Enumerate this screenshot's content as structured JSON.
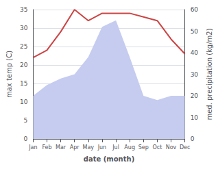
{
  "chart_data": {
    "type": "line",
    "categories": [
      "Jan",
      "Feb",
      "Mar",
      "Apr",
      "May",
      "Jun",
      "Jul",
      "Aug",
      "Sep",
      "Oct",
      "Nov",
      "Dec"
    ],
    "xlabel": "date (month)",
    "ylabel": "max temp (C)",
    "y2label": "med. precipitation (kg/m2)",
    "ylim": [
      0,
      35
    ],
    "yticks": [
      0,
      5,
      10,
      15,
      20,
      25,
      30,
      35
    ],
    "y2lim": [
      0,
      60
    ],
    "y2ticks": [
      0,
      10,
      20,
      30,
      40,
      50,
      60
    ],
    "grid": true,
    "series": [
      {
        "type": "area",
        "axis": "y2",
        "color": "#c5ccf0",
        "values": [
          20,
          25,
          28,
          30,
          38,
          52,
          55,
          38,
          20,
          18,
          20,
          20
        ]
      },
      {
        "type": "line",
        "color": "#cc4444",
        "values": [
          22,
          24,
          29,
          35,
          32,
          34,
          34,
          34,
          33,
          32,
          27,
          23
        ]
      }
    ]
  }
}
